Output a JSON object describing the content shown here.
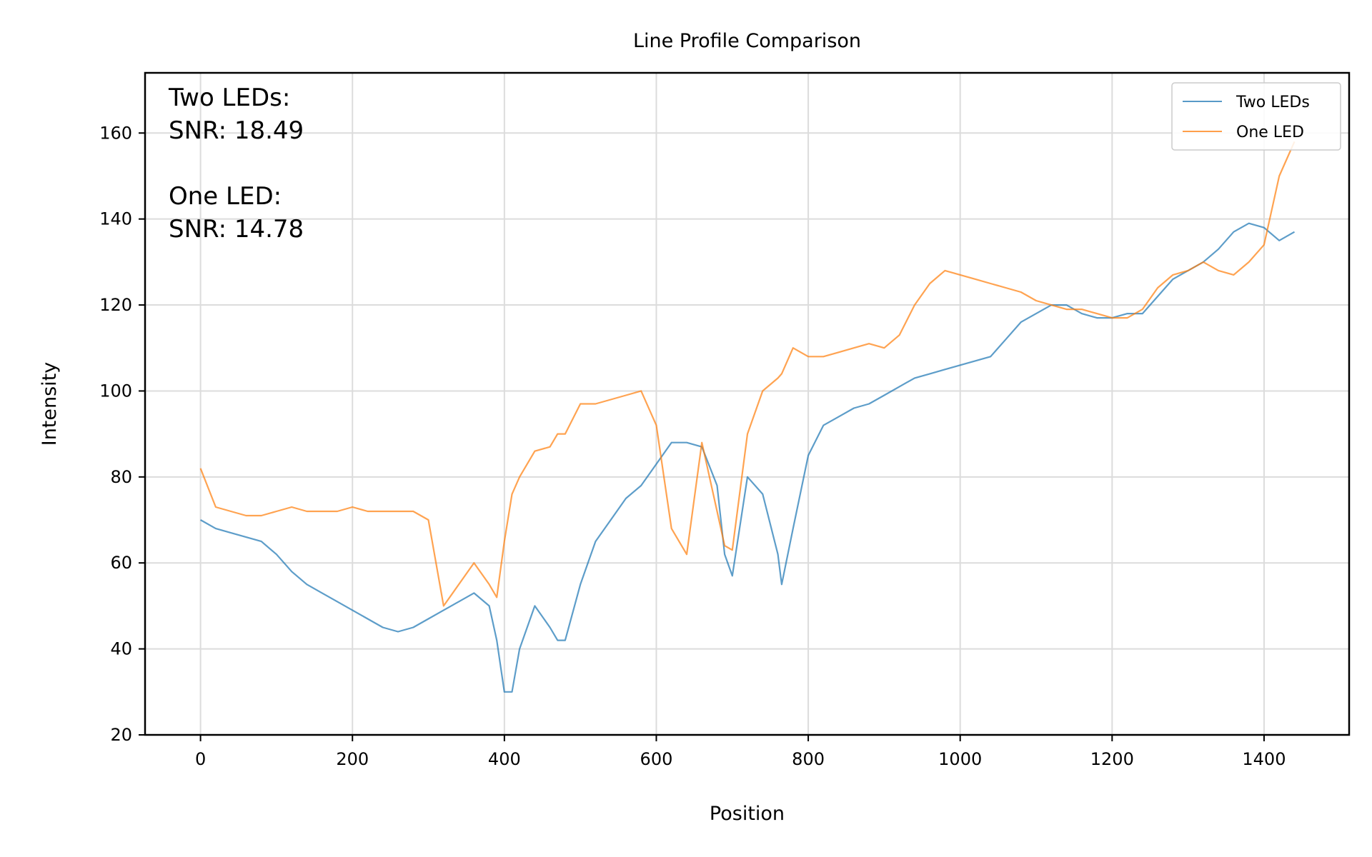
{
  "chart_data": {
    "type": "line",
    "title": "Line Profile Comparison",
    "xlabel": "Position",
    "ylabel": "Intensity",
    "xlim": [
      -73,
      1512
    ],
    "ylim": [
      20,
      174
    ],
    "xticks": [
      0,
      200,
      400,
      600,
      800,
      1000,
      1200,
      1400
    ],
    "yticks": [
      20,
      40,
      60,
      80,
      100,
      120,
      140,
      160
    ],
    "grid": true,
    "legend_position": "top-right",
    "annotation_lines": [
      "Two LEDs:",
      "SNR: 18.49",
      "",
      "One LED:",
      "SNR: 14.78"
    ],
    "x": [
      0,
      20,
      40,
      60,
      80,
      100,
      120,
      140,
      160,
      180,
      200,
      220,
      240,
      260,
      280,
      300,
      320,
      340,
      360,
      380,
      390,
      400,
      410,
      420,
      440,
      460,
      470,
      480,
      500,
      520,
      540,
      560,
      580,
      600,
      620,
      640,
      660,
      680,
      690,
      700,
      720,
      740,
      760,
      765,
      780,
      800,
      820,
      840,
      860,
      880,
      900,
      920,
      940,
      960,
      980,
      1000,
      1020,
      1040,
      1060,
      1080,
      1100,
      1120,
      1140,
      1160,
      1180,
      1200,
      1220,
      1240,
      1260,
      1280,
      1300,
      1320,
      1340,
      1360,
      1380,
      1400,
      1420,
      1440
    ],
    "series": [
      {
        "name": "Two LEDs",
        "color": "#1f77b4",
        "values": [
          70,
          68,
          67,
          66,
          65,
          62,
          58,
          55,
          53,
          51,
          49,
          47,
          45,
          44,
          45,
          47,
          49,
          51,
          53,
          50,
          42,
          30,
          30,
          40,
          50,
          45,
          42,
          42,
          55,
          65,
          70,
          75,
          78,
          83,
          88,
          88,
          87,
          78,
          62,
          57,
          80,
          76,
          62,
          55,
          68,
          85,
          92,
          94,
          96,
          97,
          99,
          101,
          103,
          104,
          105,
          106,
          107,
          108,
          112,
          116,
          118,
          120,
          120,
          118,
          117,
          117,
          118,
          118,
          122,
          126,
          128,
          130,
          133,
          137,
          139,
          138,
          135,
          137
        ]
      },
      {
        "name": "One LED",
        "color": "#ff7f0e",
        "values": [
          82,
          73,
          72,
          71,
          71,
          72,
          73,
          72,
          72,
          72,
          73,
          72,
          72,
          72,
          72,
          70,
          50,
          55,
          60,
          55,
          52,
          65,
          76,
          80,
          86,
          87,
          90,
          90,
          97,
          97,
          98,
          99,
          100,
          92,
          68,
          62,
          88,
          72,
          64,
          63,
          90,
          100,
          103,
          104,
          110,
          108,
          108,
          109,
          110,
          111,
          110,
          113,
          120,
          125,
          128,
          127,
          126,
          125,
          124,
          123,
          121,
          120,
          119,
          119,
          118,
          117,
          117,
          119,
          124,
          127,
          128,
          130,
          128,
          127,
          130,
          134,
          150,
          158
        ]
      }
    ]
  }
}
